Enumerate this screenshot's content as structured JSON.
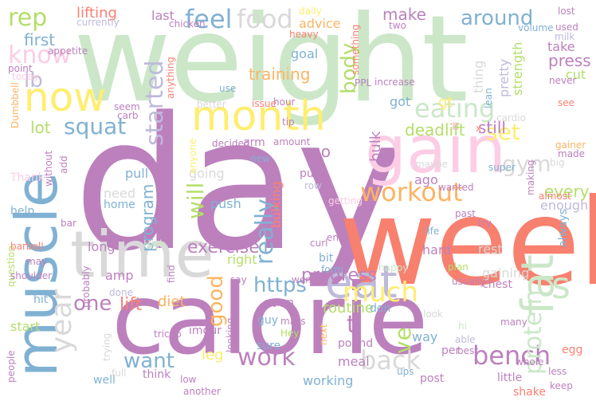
{
  "words": {
    "weight": {
      "text": "weight",
      "color": "#cbe7c8"
    },
    "day": {
      "text": "day",
      "color": "#bc80bd"
    },
    "week": {
      "text": "week",
      "color": "#f8806f"
    },
    "calorie": {
      "text": "calorie",
      "color": "#bc80bd"
    },
    "muscle": {
      "text": "muscle",
      "color": "#80b1d3"
    },
    "time": {
      "text": "time",
      "color": "#d9d9d9"
    },
    "gain": {
      "text": "gain",
      "color": "#fccde5"
    },
    "eat": {
      "text": "eat",
      "color": "#bebada"
    },
    "month": {
      "text": "month",
      "color": "#ffed6f"
    },
    "now": {
      "text": "now",
      "color": "#ffed6f"
    },
    "fat": {
      "text": "fat",
      "color": "#cbe7c8"
    },
    "s": {
      "text": "s",
      "color": "#cbe7c8"
    },
    "workout": {
      "text": "workout",
      "color": "#fdb462"
    },
    "eating": {
      "text": "eating",
      "color": "#cbe7c8"
    },
    "much": {
      "text": "much",
      "color": "#ffed6f"
    },
    "bench": {
      "text": "bench",
      "color": "#bc80bd"
    },
    "back": {
      "text": "back",
      "color": "#d9d9d9"
    },
    "work": {
      "text": "work",
      "color": "#bc80bd"
    },
    "food": {
      "text": "food",
      "color": "#d9d9d9"
    },
    "feel": {
      "text": "feel",
      "color": "#80b1d3"
    },
    "know": {
      "text": "know",
      "color": "#fccde5"
    },
    "rep": {
      "text": "rep",
      "color": "#b3de69"
    },
    "around": {
      "text": "around",
      "color": "#80b1d3"
    },
    "squat": {
      "text": "squat",
      "color": "#80b1d3"
    },
    "started": {
      "text": "started",
      "color": "#bebada"
    },
    "year": {
      "text": "year",
      "color": "#d9d9d9"
    },
    "one": {
      "text": "one",
      "color": "#bc80bd"
    },
    "lift": {
      "text": "lift",
      "color": "#fb8072"
    },
    "want": {
      "text": "want",
      "color": "#80b1d3"
    },
    "https": {
      "text": "https",
      "color": "#80b1d3"
    },
    "ve": {
      "text": "ve",
      "color": "#b3de69"
    },
    "protein": {
      "text": "protein",
      "color": "#cbe7c8"
    },
    "set": {
      "text": "set",
      "color": "#ffed6f"
    },
    "gym": {
      "text": "gym",
      "color": "#d9d9d9"
    },
    "really": {
      "text": "really",
      "color": "#80b1d3"
    },
    "will": {
      "text": "will",
      "color": "#b3de69"
    },
    "body": {
      "text": "body",
      "color": "#b3de69"
    },
    "lb": {
      "text": "lb",
      "color": "#bebada"
    },
    "first": {
      "text": "first",
      "color": "#80b1d3"
    },
    "lot": {
      "text": "lot",
      "color": "#b3de69"
    },
    "exercise": {
      "text": "exercise",
      "color": "#bc80bd"
    },
    "progress": {
      "text": "progress",
      "color": "#bc80bd"
    },
    "good": {
      "text": "good",
      "color": "#fdb462"
    },
    "training": {
      "text": "training",
      "color": "#fdb462"
    },
    "program": {
      "text": "program",
      "color": "#80b1d3"
    },
    "deadlift": {
      "text": "deadlift",
      "color": "#b3de69"
    },
    "still": {
      "text": "still",
      "color": "#bc80bd"
    },
    "go": {
      "text": "go",
      "color": "#bc80bd"
    },
    "bulk": {
      "text": "bulk",
      "color": "#bc80bd"
    },
    "make": {
      "text": "make",
      "color": "#bc80bd"
    },
    "lifting": {
      "text": "lifting",
      "color": "#fb8072"
    },
    "press": {
      "text": "press",
      "color": "#bc80bd"
    },
    "every": {
      "text": "every",
      "color": "#b3de69"
    },
    "enough": {
      "text": "enough",
      "color": "#bebada"
    },
    "diet": {
      "text": "diet",
      "color": "#fdb462"
    },
    "leg": {
      "text": "leg",
      "color": "#ffed6f"
    },
    "meal": {
      "text": "meal",
      "color": "#bc80bd"
    },
    "way": {
      "text": "way",
      "color": "#80b1d3"
    },
    "routine": {
      "text": "routine",
      "color": "#b3de69"
    },
    "t": {
      "text": "t",
      "color": "#bc80bd"
    },
    "pretty": {
      "text": "pretty",
      "color": "#bebada"
    },
    "strength": {
      "text": "strength",
      "color": "#b3de69"
    },
    "got": {
      "text": "got",
      "color": "#80b1d3"
    },
    "gt": {
      "text": "gt",
      "color": "#ffed6f"
    },
    "thing": {
      "text": "thing",
      "color": "#d9d9d9"
    },
    "take": {
      "text": "take",
      "color": "#bc80bd"
    },
    "cut": {
      "text": "cut",
      "color": "#b3de69"
    },
    "goal": {
      "text": "goal",
      "color": "#80b1d3"
    },
    "advice": {
      "text": "advice",
      "color": "#fdb462"
    },
    "last": {
      "text": "last",
      "color": "#bc80bd"
    },
    "pull": {
      "text": "pull",
      "color": "#80b1d3"
    },
    "push": {
      "text": "push",
      "color": "#80b1d3"
    },
    "going": {
      "text": "going",
      "color": "#d9d9d9"
    },
    "home": {
      "text": "home",
      "color": "#80b1d3"
    },
    "need": {
      "text": "need",
      "color": "#d9d9d9"
    },
    "help": {
      "text": "help",
      "color": "#80b1d3"
    },
    "long": {
      "text": "long",
      "color": "#bc80bd"
    },
    "amp": {
      "text": "amp",
      "color": "#bc80bd"
    },
    "right": {
      "text": "right",
      "color": "#b3de69"
    },
    "arm": {
      "text": "arm",
      "color": "#bc80bd"
    },
    "bulking": {
      "text": "bulking",
      "color": "#fb8072"
    },
    "guy": {
      "text": "guy",
      "color": "#80b1d3"
    },
    "even": {
      "text": "even",
      "color": "#bc80bd"
    },
    "sure": {
      "text": "sure",
      "color": "#80b1d3"
    },
    "bit": {
      "text": "bit",
      "color": "#80b1d3"
    },
    "hard": {
      "text": "hard",
      "color": "#bc80bd"
    },
    "rest": {
      "text": "rest",
      "color": "#d9d9d9"
    },
    "chest": {
      "text": "chest",
      "color": "#bc80bd"
    },
    "gaining": {
      "text": "gaining",
      "color": "#d9d9d9"
    },
    "ago": {
      "text": "ago",
      "color": "#bc80bd"
    },
    "always": {
      "text": "always",
      "color": "#80b1d3"
    },
    "pound": {
      "text": "pound",
      "color": "#bc80bd"
    },
    "per": {
      "text": "per",
      "color": "#bc80bd"
    },
    "post": {
      "text": "post",
      "color": "#bc80bd"
    },
    "working": {
      "text": "working",
      "color": "#80b1d3"
    },
    "well": {
      "text": "well",
      "color": "#80b1d3"
    },
    "think": {
      "text": "think",
      "color": "#bc80bd"
    },
    "start": {
      "text": "start",
      "color": "#b3de69"
    },
    "hit": {
      "text": "hit",
      "color": "#80b1d3"
    },
    "question": {
      "text": "question",
      "color": "#b3de69"
    },
    "imgur": {
      "text": "imgur",
      "color": "#bc80bd"
    },
    "trying": {
      "text": "trying",
      "color": "#d9d9d9"
    },
    "curl": {
      "text": "curl",
      "color": "#bc80bd"
    },
    "end": {
      "text": "end",
      "color": "#bc80bd"
    },
    "form": {
      "text": "form",
      "color": "#80b1d3"
    },
    "don": {
      "text": "don",
      "color": "#80b1d3"
    },
    "usually": {
      "text": "usually",
      "color": "#bc80bd"
    },
    "plan": {
      "text": "plan",
      "color": "#b3de69"
    },
    "maybe": {
      "text": "maybe",
      "color": "#d9d9d9"
    },
    "wanted": {
      "text": "wanted",
      "color": "#bc80bd"
    },
    "past": {
      "text": "past",
      "color": "#bc80bd"
    },
    "try": {
      "text": "try",
      "color": "#bc80bd"
    },
    "life": {
      "text": "life",
      "color": "#80b1d3"
    },
    "made": {
      "text": "made",
      "color": "#bc80bd"
    },
    "egg": {
      "text": "egg",
      "color": "#fb8072"
    },
    "less": {
      "text": "less",
      "color": "#bc80bd"
    },
    "shake": {
      "text": "shake",
      "color": "#fb8072"
    },
    "keep": {
      "text": "keep",
      "color": "#bc80bd"
    },
    "little": {
      "text": "little",
      "color": "#bc80bd"
    },
    "best": {
      "text": "best",
      "color": "#bc80bd"
    },
    "able": {
      "text": "able",
      "color": "#bebada"
    },
    "whole": {
      "text": "whole",
      "color": "#bc80bd"
    },
    "many": {
      "text": "many",
      "color": "#bc80bd"
    },
    "ups": {
      "text": "ups",
      "color": "#80b1d3"
    },
    "tricep": {
      "text": "tricep",
      "color": "#bc80bd"
    },
    "people": {
      "text": "people",
      "color": "#bc80bd"
    },
    "done": {
      "text": "done",
      "color": "#bebada"
    },
    "shoulder": {
      "text": "shoulder",
      "color": "#bc80bd"
    },
    "barbell": {
      "text": "barbell",
      "color": "#fb8072"
    },
    "may": {
      "text": "may",
      "color": "#bc80bd"
    },
    "bar": {
      "text": "bar",
      "color": "#bc80bd"
    },
    "carb": {
      "text": "carb",
      "color": "#bc80bd"
    },
    "add": {
      "text": "add",
      "color": "#bc80bd"
    },
    "Thank": {
      "text": "Thank",
      "color": "#fccde5"
    },
    "seem": {
      "text": "seem",
      "color": "#bc80bd"
    },
    "appetite": {
      "text": "appetite",
      "color": "#bc80bd"
    },
    "today": {
      "text": "today",
      "color": "#fccde5"
    },
    "point": {
      "text": "point",
      "color": "#bc80bd"
    },
    "currently": {
      "text": "currently",
      "color": "#bebada"
    },
    "chicken": {
      "text": "chicken",
      "color": "#bc80bd"
    },
    "better": {
      "text": "better",
      "color": "#d9d9d9"
    },
    "anything": {
      "text": "anything",
      "color": "#fb8072"
    },
    "anyone": {
      "text": "anyone",
      "color": "#ffed6f"
    },
    "use": {
      "text": "use",
      "color": "#80b1d3"
    },
    "tip": {
      "text": "tip",
      "color": "#bc80bd"
    },
    "hour": {
      "text": "hour",
      "color": "#bc80bd"
    },
    "issue": {
      "text": "issue",
      "color": "#fb8072"
    },
    "decided": {
      "text": "decided",
      "color": "#bc80bd"
    },
    "amount": {
      "text": "amount",
      "color": "#bc80bd"
    },
    "new": {
      "text": "new",
      "color": "#80b1d3"
    },
    "put": {
      "text": "put",
      "color": "#bc80bd"
    },
    "row": {
      "text": "row",
      "color": "#bebada"
    },
    "heavy": {
      "text": "heavy",
      "color": "#fb8072"
    },
    "daily": {
      "text": "daily",
      "color": "#ffed6f"
    },
    "two": {
      "text": "two",
      "color": "#bc80bd"
    },
    "something": {
      "text": "something",
      "color": "#fb8072"
    },
    "PPL": {
      "text": "PPL",
      "color": "#bc80bd"
    },
    "increase": {
      "text": "increase",
      "color": "#bc80bd"
    },
    "lean": {
      "text": "lean",
      "color": "#80b1d3"
    },
    "never": {
      "text": "never",
      "color": "#bc80bd"
    },
    "see": {
      "text": "see",
      "color": "#fb8072"
    },
    "volume": {
      "text": "volume",
      "color": "#80b1d3"
    },
    "used": {
      "text": "used",
      "color": "#bc80bd"
    },
    "lost": {
      "text": "lost",
      "color": "#bc80bd"
    },
    "cardio": {
      "text": "cardio",
      "color": "#d9d9d9"
    },
    "super": {
      "text": "super",
      "color": "#80b1d3"
    },
    "making": {
      "text": "making",
      "color": "#bc80bd"
    },
    "big": {
      "text": "big",
      "color": "#d9d9d9"
    },
    "gainer": {
      "text": "gainer",
      "color": "#fdb462"
    },
    "almost": {
      "text": "almost",
      "color": "#fb8072"
    },
    "getting": {
      "text": "getting",
      "color": "#fccde5"
    },
    "went": {
      "text": "went",
      "color": "#bc80bd"
    },
    "say": {
      "text": "say",
      "color": "#bc80bd"
    },
    "find": {
      "text": "find",
      "color": "#bc80bd"
    },
    "probably": {
      "text": "probably",
      "color": "#bc80bd"
    },
    "another": {
      "text": "another",
      "color": "#bc80bd"
    },
    "low": {
      "text": "low",
      "color": "#bc80bd"
    },
    "full": {
      "text": "full",
      "color": "#d9d9d9"
    },
    "looking": {
      "text": "looking",
      "color": "#bc80bd"
    },
    "Hey": {
      "text": "Hey",
      "color": "#b3de69"
    },
    "mass": {
      "text": "mass",
      "color": "#bc80bd"
    },
    "next": {
      "text": "next",
      "color": "#fdb462"
    },
    "happy": {
      "text": "happy",
      "color": "#cbe7c8"
    },
    "look": {
      "text": "look",
      "color": "#d9d9d9"
    },
    "hi": {
      "text": "hi",
      "color": "#cbe7c8"
    },
    "milk": {
      "text": "milk",
      "color": "#bebada"
    },
    "Dumbbell": {
      "text": "Dumbbell",
      "color": "#fdb462"
    },
    "without": {
      "text": "without",
      "color": "#bc80bd"
    },
    "High": {
      "text": "High",
      "color": "#cbe7c8"
    },
    "x": {
      "text": "x",
      "color": "#fb8072"
    }
  }
}
